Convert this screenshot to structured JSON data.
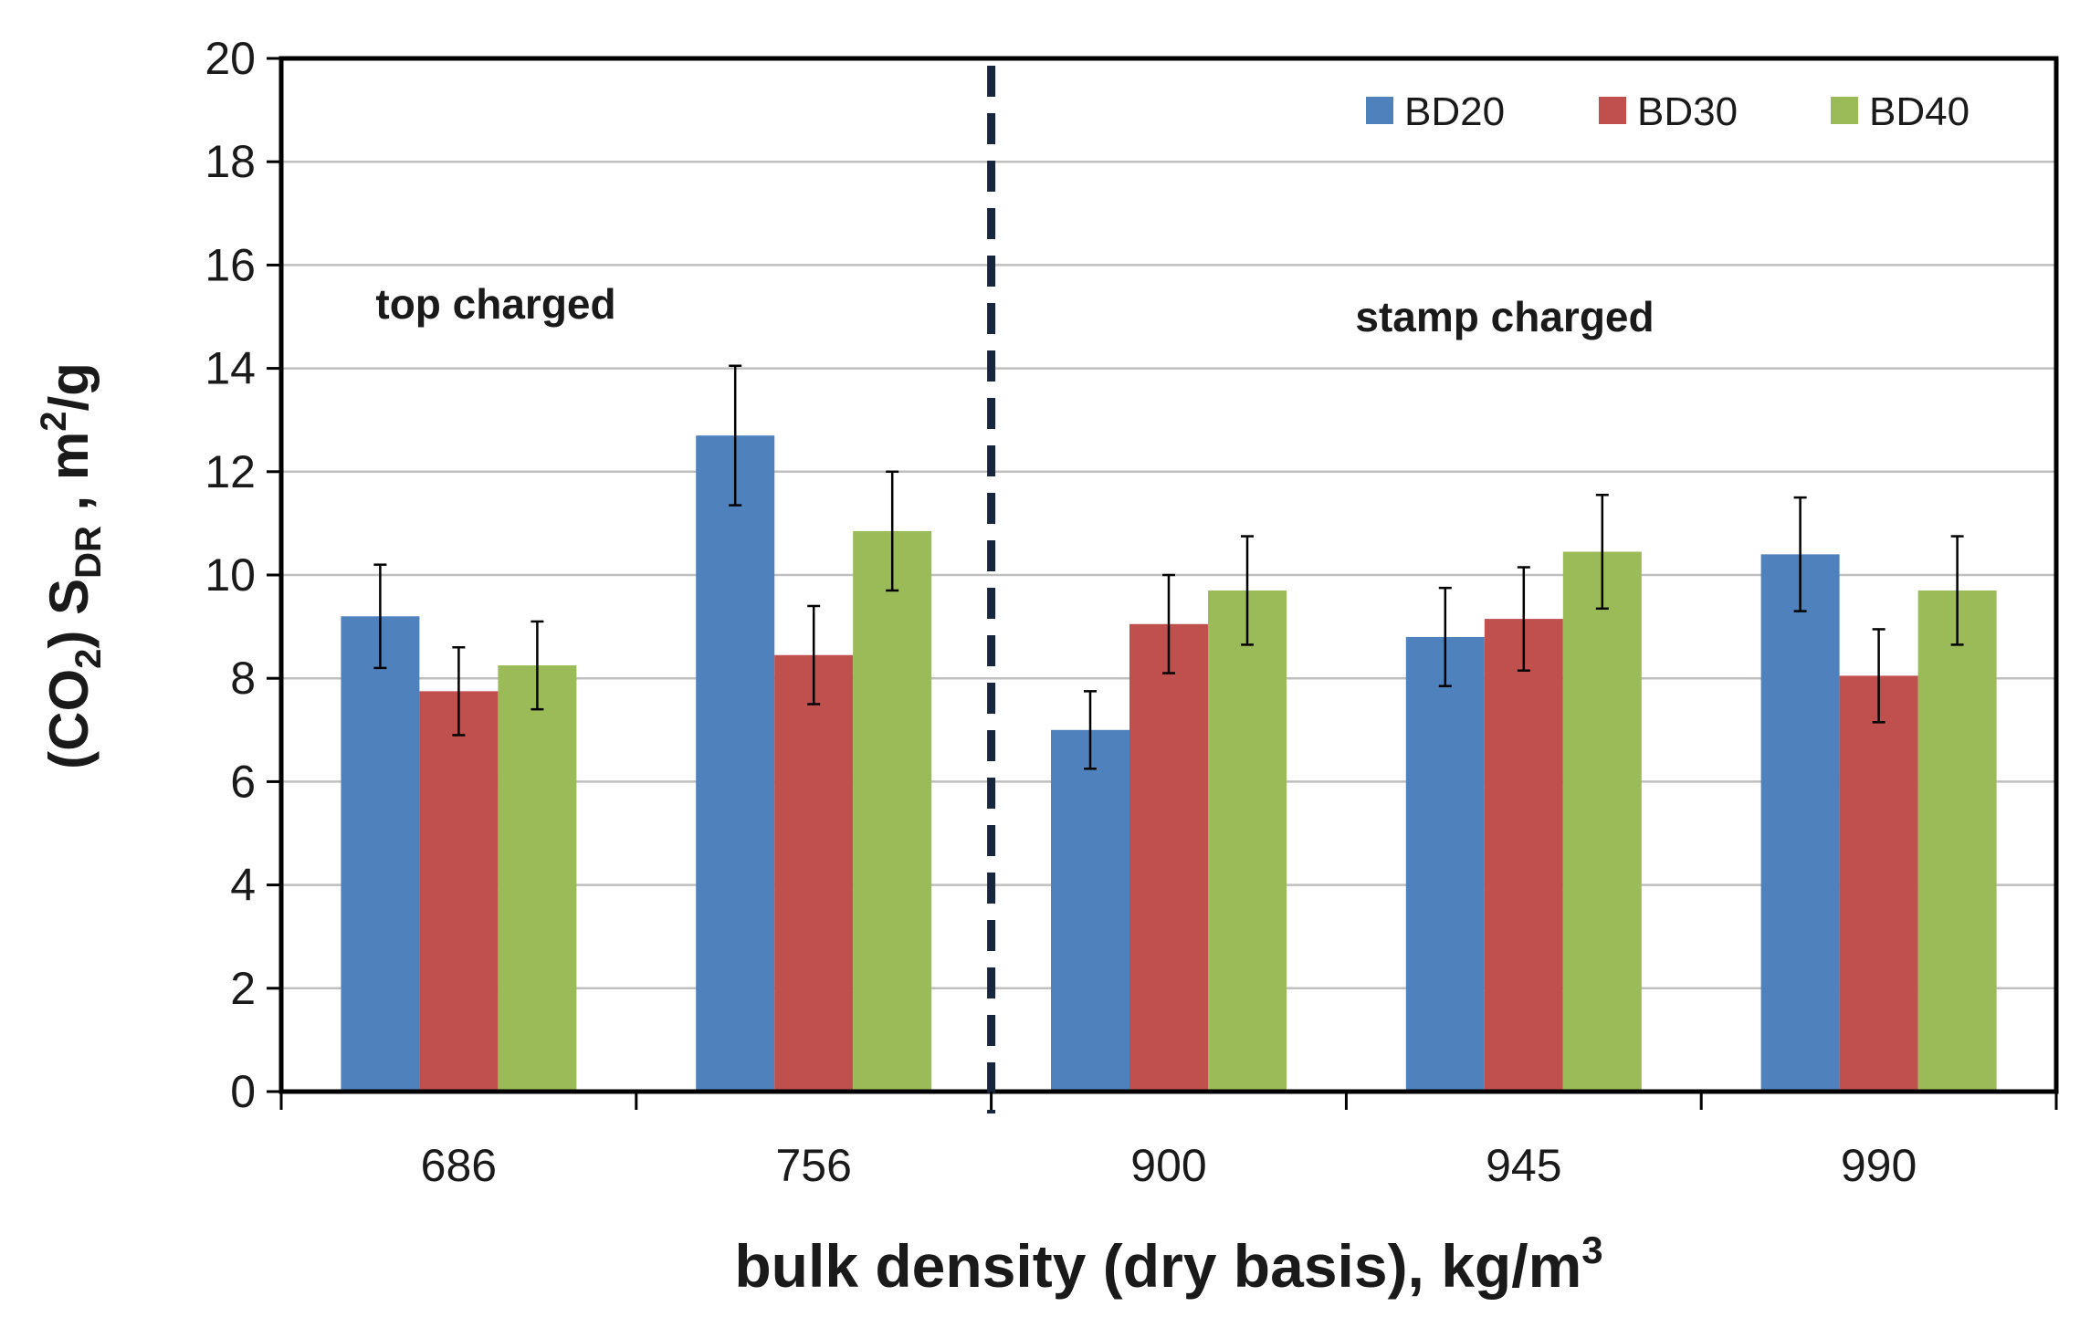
{
  "chart_data": {
    "type": "bar",
    "categories": [
      "686",
      "756",
      "900",
      "945",
      "990"
    ],
    "series": [
      {
        "name": "BD20",
        "color": "#4f81bd",
        "values": [
          9.2,
          12.7,
          7.0,
          8.8,
          10.4
        ],
        "errors": [
          1.0,
          1.35,
          0.75,
          0.95,
          1.1
        ]
      },
      {
        "name": "BD30",
        "color": "#c0504d",
        "values": [
          7.75,
          8.45,
          9.05,
          9.15,
          8.05
        ],
        "errors": [
          0.85,
          0.95,
          0.95,
          1.0,
          0.9
        ]
      },
      {
        "name": "BD40",
        "color": "#9bbb59",
        "values": [
          8.25,
          10.85,
          9.7,
          10.45,
          9.7
        ],
        "errors": [
          0.85,
          1.15,
          1.05,
          1.1,
          1.05
        ]
      }
    ],
    "xlabel": {
      "main": "bulk density (dry basis), kg/m",
      "sup": "3"
    },
    "ylabel": {
      "part1": "(CO",
      "sub1": "2",
      "part2": ") S",
      "sub2": "DR",
      "part3": " , m",
      "sup": "2",
      "part4": "/g"
    },
    "ylim": [
      0,
      20
    ],
    "yticks": [
      0,
      2,
      4,
      6,
      8,
      10,
      12,
      14,
      16,
      18,
      20
    ],
    "grid": true,
    "legend_position": "top-right",
    "annotations": [
      "top charged",
      "stamp charged"
    ],
    "divider": "dashed vertical line between 756 and 900"
  }
}
